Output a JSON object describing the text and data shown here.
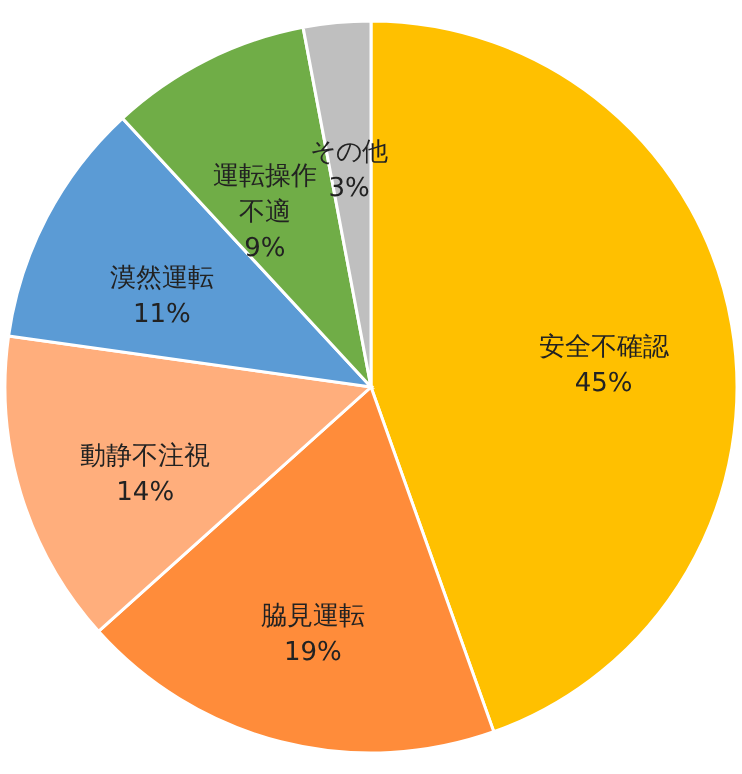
{
  "chart_data": {
    "type": "pie",
    "categories": [
      "安全不確認",
      "脇見運転",
      "動静不注視",
      "漠然運転",
      "運転操作不適",
      "その他"
    ],
    "values": [
      45,
      19,
      14,
      11,
      9,
      3
    ],
    "value_labels": [
      "45%",
      "19%",
      "14%",
      "11%",
      "9%",
      "3%"
    ],
    "colors": [
      "#ffc000",
      "#ff8c3a",
      "#ffae7c",
      "#5b9bd5",
      "#70ad47",
      "#bfbfbf"
    ]
  }
}
